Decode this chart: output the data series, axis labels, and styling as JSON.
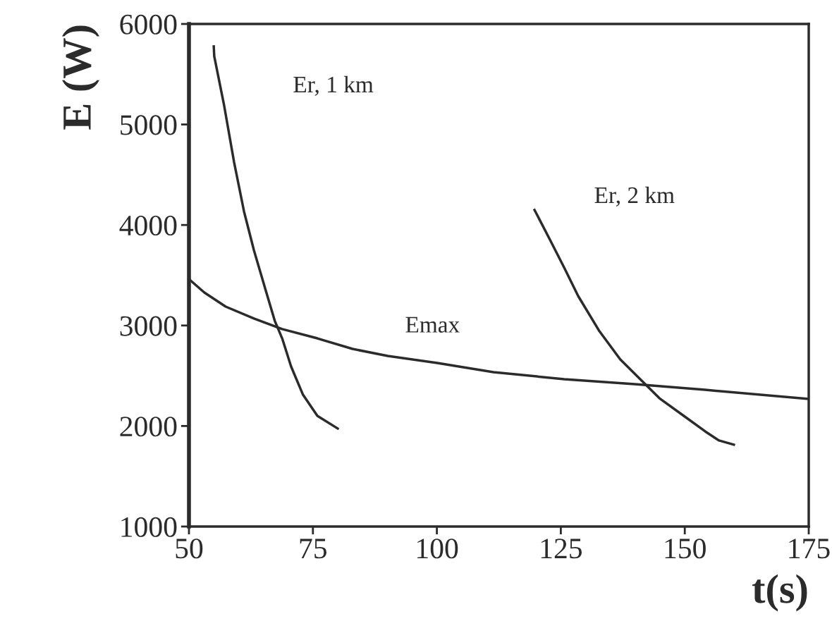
{
  "chart_data": {
    "type": "line",
    "xlabel": "t(s)",
    "ylabel": "E (W)",
    "xlim": [
      50,
      175
    ],
    "xticks": [
      50,
      75,
      100,
      125,
      150,
      175
    ],
    "ylim": [
      1000,
      6000
    ],
    "yticks": [
      1000,
      2000,
      3000,
      4000,
      5000,
      6000
    ],
    "grid": false,
    "legend": false,
    "marker": "none",
    "line_style": "solid",
    "series": [
      {
        "name": "Er, 1 km",
        "color": "#2b2b2b",
        "x": [
          55,
          55.1,
          57.1,
          59.1,
          61.1,
          63.1,
          65.4,
          67.3,
          68.8,
          70.6,
          73.0,
          75.9,
          80.0
        ],
        "values": [
          5776,
          5678,
          5187,
          4625,
          4135,
          3749,
          3363,
          3047,
          2872,
          2592,
          2311,
          2101,
          1975
        ]
      },
      {
        "name": "Er, 2 km",
        "color": "#2b2b2b",
        "x": [
          119.7,
          120.0,
          122.8,
          125.7,
          128.5,
          132.8,
          137.0,
          141.3,
          144.9,
          149.8,
          154.1,
          156.9,
          159.9
        ],
        "values": [
          4149,
          4121,
          3854,
          3574,
          3293,
          2942,
          2662,
          2452,
          2276,
          2101,
          1947,
          1856,
          1814
        ]
      },
      {
        "name": "Emax",
        "color": "#2b2b2b",
        "x": [
          50,
          53.1,
          57.4,
          63.1,
          68.8,
          75.9,
          83.0,
          90.1,
          100.1,
          111.4,
          125.7,
          139.9,
          154.1,
          175
        ],
        "values": [
          3461,
          3328,
          3188,
          3069,
          2964,
          2872,
          2767,
          2697,
          2627,
          2536,
          2466,
          2417,
          2360,
          2269
        ]
      }
    ]
  }
}
